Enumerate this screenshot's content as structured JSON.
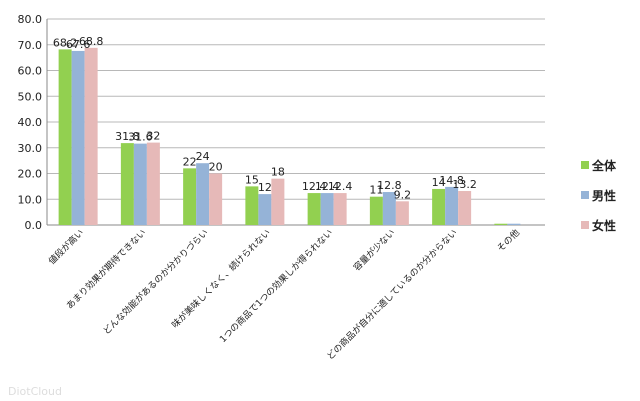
{
  "chart_data": {
    "type": "bar",
    "title": "",
    "xlabel": "",
    "ylabel": "",
    "ylim": [
      0,
      80
    ],
    "yticks": [
      "0.0",
      "10.0",
      "20.0",
      "30.0",
      "40.0",
      "50.0",
      "60.0",
      "70.0",
      "80.0"
    ],
    "grid": true,
    "legend_position": "right",
    "categories": [
      "値段が高い",
      "あまり効果が期待できない",
      "どんな効能があるのか分かりづらい",
      "味が美味しくなく、続けられない",
      "1つの商品で1つの効果しか得られない",
      "容量が少ない",
      "どの商品が自分に適しているのか分からない",
      "その他"
    ],
    "series": [
      {
        "name": "全体",
        "color": "#92d050",
        "values": [
          68.2,
          31.8,
          22,
          15,
          12.4,
          11,
          14,
          0.5
        ],
        "labels": [
          "68.2",
          "31.8",
          "22",
          "15",
          "12.4",
          "11",
          "14",
          ""
        ]
      },
      {
        "name": "男性",
        "color": "#95b3d7",
        "values": [
          67.6,
          31.6,
          24,
          12,
          12.4,
          12.8,
          14.8,
          0.5
        ],
        "labels": [
          "67.6",
          "31.6",
          "24",
          "12",
          "12.4",
          "12.8",
          "14.8",
          ""
        ]
      },
      {
        "name": "女性",
        "color": "#e6b9b8",
        "values": [
          68.8,
          32,
          20,
          18,
          12.4,
          9.2,
          13.2,
          0
        ],
        "labels": [
          "68.8",
          "32",
          "20",
          "18",
          "12.4",
          "9.2",
          "13.2",
          ""
        ]
      }
    ]
  },
  "watermark": "DiotCloud"
}
